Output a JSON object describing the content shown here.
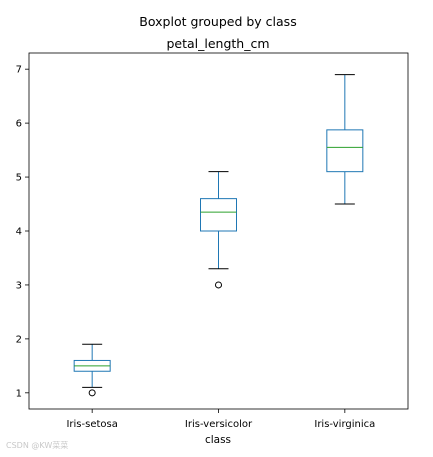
{
  "chart_data": {
    "type": "boxplot",
    "suptitle": "Boxplot grouped by class",
    "title": "petal_length_cm",
    "xlabel": "class",
    "ylabel": "",
    "ylim": [
      0.7,
      7.3
    ],
    "yticks": [
      1,
      2,
      3,
      4,
      5,
      6,
      7
    ],
    "ytick_labels": [
      "1",
      "2",
      "3",
      "4",
      "5",
      "6",
      "7"
    ],
    "grid": false,
    "categories": [
      "Iris-setosa",
      "Iris-versicolor",
      "Iris-virginica"
    ],
    "boxes": [
      {
        "category": "Iris-setosa",
        "whisker_low": 1.1,
        "q1": 1.4,
        "median": 1.5,
        "q3": 1.6,
        "whisker_high": 1.9,
        "outliers": [
          1.0
        ]
      },
      {
        "category": "Iris-versicolor",
        "whisker_low": 3.3,
        "q1": 4.0,
        "median": 4.35,
        "q3": 4.6,
        "whisker_high": 5.1,
        "outliers": [
          3.0
        ]
      },
      {
        "category": "Iris-virginica",
        "whisker_low": 4.5,
        "q1": 5.1,
        "median": 5.55,
        "q3": 5.875,
        "whisker_high": 6.9,
        "outliers": []
      }
    ],
    "colors": {
      "box": "#1f77b4",
      "median": "#2ca02c",
      "whisker": "#1f77b4",
      "cap": "#000000",
      "outlier": "#000000",
      "axes": "#000000"
    }
  },
  "watermark": "CSDN @KW菜菜"
}
